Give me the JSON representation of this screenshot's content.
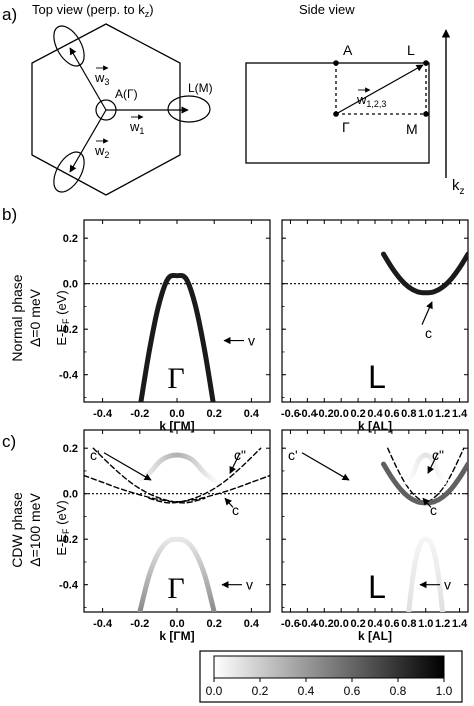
{
  "panel_a": {
    "label": "a)",
    "top_view": {
      "title": "Top view (perp. to k",
      "title_sub": "z",
      "title_close": ")",
      "center_label": "A(Γ)",
      "edge_label": "L(M)",
      "w1_label": "w",
      "w1_sub": "1",
      "w2_label": "w",
      "w2_sub": "2",
      "w3_label": "w",
      "w3_sub": "3"
    },
    "side_view": {
      "title": "Side view",
      "label_A": "A",
      "label_L": "L",
      "label_Gamma": "Γ",
      "label_M": "M",
      "vec_label": "w",
      "vec_sub": "1,2,3",
      "axis_label": "k",
      "axis_sub": "z"
    }
  },
  "panel_b": {
    "label": "b)",
    "row_title": "Normal phase",
    "row_subtitle": "Δ=0 meV",
    "ylabel": "E-E",
    "ylabel_sub": "F",
    "ylabel_unit": " (eV)"
  },
  "panel_c": {
    "label": "c)",
    "row_title": "CDW phase",
    "row_subtitle": "Δ=100 meV",
    "ylabel": "E-E",
    "ylabel_sub": "F",
    "ylabel_unit": " (eV)"
  },
  "colorbar": {
    "ticks": [
      "0.0",
      "0.2",
      "0.4",
      "0.6",
      "0.8",
      "1.0"
    ]
  },
  "chart_data": [
    {
      "type": "line",
      "id": "b-left",
      "point_label": "Γ",
      "xlabel": "k [ΓM]",
      "xlim": [
        -0.5,
        0.5
      ],
      "ylim": [
        -0.52,
        0.28
      ],
      "xticks": [
        "-0.4",
        "-0.2",
        "0.0",
        "0.2",
        "0.4"
      ],
      "yticks": [
        "0.2",
        "0.0",
        "-0.2",
        "-0.4"
      ],
      "series": [
        {
          "name": "v",
          "x": [
            -0.2,
            -0.15,
            -0.1,
            -0.05,
            0.0,
            0.05,
            0.1,
            0.15,
            0.2
          ],
          "y": [
            -0.55,
            -0.3,
            -0.1,
            0.02,
            0.035,
            0.02,
            -0.1,
            -0.3,
            -0.55
          ]
        }
      ]
    },
    {
      "type": "line",
      "id": "b-right",
      "point_label": "L",
      "xlabel": "k [AL]",
      "xlim": [
        -0.5,
        1.5
      ],
      "ylim": [
        -0.52,
        0.28
      ],
      "xticks": [
        "-0.6",
        "-0.4",
        "-0.2",
        "0.0",
        "0.2",
        "0.4",
        "0.6",
        "0.8",
        "1.0",
        "1.2",
        "1.4"
      ],
      "yticks": [
        "0.2",
        "0.0",
        "-0.2",
        "-0.4"
      ],
      "series": [
        {
          "name": "c",
          "x": [
            0.5,
            0.6,
            0.7,
            0.8,
            0.9,
            1.0,
            1.1,
            1.2,
            1.3,
            1.4,
            1.5
          ],
          "y": [
            0.13,
            0.07,
            0.02,
            -0.015,
            -0.035,
            -0.04,
            -0.035,
            -0.015,
            0.02,
            0.07,
            0.13
          ]
        }
      ]
    },
    {
      "type": "line",
      "id": "c-left",
      "point_label": "Γ",
      "xlabel": "k [ΓM]",
      "xlim": [
        -0.5,
        0.5
      ],
      "ylim": [
        -0.52,
        0.28
      ],
      "xticks": [
        "-0.4",
        "-0.2",
        "0.0",
        "0.2",
        "0.4"
      ],
      "yticks": [
        "0.2",
        "0.0",
        "-0.2",
        "-0.4"
      ],
      "series": [
        {
          "name": "c'",
          "x": [
            -0.45,
            -0.35,
            -0.25,
            -0.15,
            -0.05,
            0.05,
            0.15
          ],
          "y": [
            0.2,
            0.12,
            0.05,
            0.0,
            -0.03,
            -0.04,
            -0.02
          ]
        },
        {
          "name": "c\"",
          "x": [
            -0.15,
            -0.05,
            0.05,
            0.15,
            0.25,
            0.35,
            0.45
          ],
          "y": [
            -0.02,
            -0.04,
            -0.03,
            0.0,
            0.05,
            0.12,
            0.2
          ]
        },
        {
          "name": "c",
          "x": [
            -0.5,
            -0.4,
            -0.3,
            -0.2,
            -0.1,
            0.0,
            0.1,
            0.2,
            0.3,
            0.4,
            0.5
          ],
          "y": [
            0.08,
            0.05,
            0.02,
            -0.005,
            -0.025,
            -0.035,
            -0.025,
            -0.005,
            0.02,
            0.05,
            0.08
          ]
        },
        {
          "name": "upper",
          "x": [
            -0.22,
            -0.15,
            -0.08,
            0.0,
            0.08,
            0.15,
            0.22
          ],
          "y": [
            0.05,
            0.09,
            0.15,
            0.17,
            0.15,
            0.09,
            0.05
          ]
        },
        {
          "name": "v",
          "x": [
            -0.2,
            -0.15,
            -0.1,
            -0.05,
            0.0,
            0.05,
            0.1,
            0.15,
            0.2
          ],
          "y": [
            -0.52,
            -0.36,
            -0.26,
            -0.21,
            -0.2,
            -0.21,
            -0.26,
            -0.36,
            -0.52
          ]
        }
      ]
    },
    {
      "type": "line",
      "id": "c-right",
      "point_label": "L",
      "xlabel": "k [AL]",
      "xlim": [
        -0.5,
        1.5
      ],
      "ylim": [
        -0.52,
        0.28
      ],
      "xticks": [
        "-0.6",
        "-0.4",
        "-0.2",
        "0.0",
        "0.2",
        "0.4",
        "0.6",
        "0.8",
        "1.0",
        "1.2",
        "1.4"
      ],
      "yticks": [
        "0.2",
        "0.0",
        "-0.2",
        "-0.4"
      ],
      "series": [
        {
          "name": "c'",
          "x": [
            0.55,
            0.65,
            0.75,
            0.85,
            0.95,
            1.05,
            1.15
          ],
          "y": [
            0.2,
            0.12,
            0.05,
            0.0,
            -0.03,
            -0.04,
            -0.02
          ]
        },
        {
          "name": "c\"",
          "x": [
            0.85,
            0.95,
            1.05,
            1.15,
            1.25,
            1.35,
            1.45
          ],
          "y": [
            -0.02,
            -0.04,
            -0.03,
            0.0,
            0.05,
            0.12,
            0.2
          ]
        },
        {
          "name": "c",
          "x": [
            0.5,
            0.6,
            0.7,
            0.8,
            0.9,
            1.0,
            1.1,
            1.2,
            1.3,
            1.4,
            1.5
          ],
          "y": [
            0.13,
            0.07,
            0.02,
            -0.015,
            -0.035,
            -0.04,
            -0.035,
            -0.015,
            0.02,
            0.07,
            0.13
          ]
        },
        {
          "name": "upper",
          "x": [
            0.78,
            0.85,
            0.92,
            1.0,
            1.08,
            1.15,
            1.22
          ],
          "y": [
            0.05,
            0.09,
            0.15,
            0.17,
            0.15,
            0.09,
            0.05
          ]
        },
        {
          "name": "v",
          "x": [
            0.8,
            0.85,
            0.9,
            0.95,
            1.0,
            1.05,
            1.1,
            1.15,
            1.2
          ],
          "y": [
            -0.52,
            -0.36,
            -0.26,
            -0.21,
            -0.2,
            -0.21,
            -0.26,
            -0.36,
            -0.52
          ]
        }
      ]
    }
  ]
}
